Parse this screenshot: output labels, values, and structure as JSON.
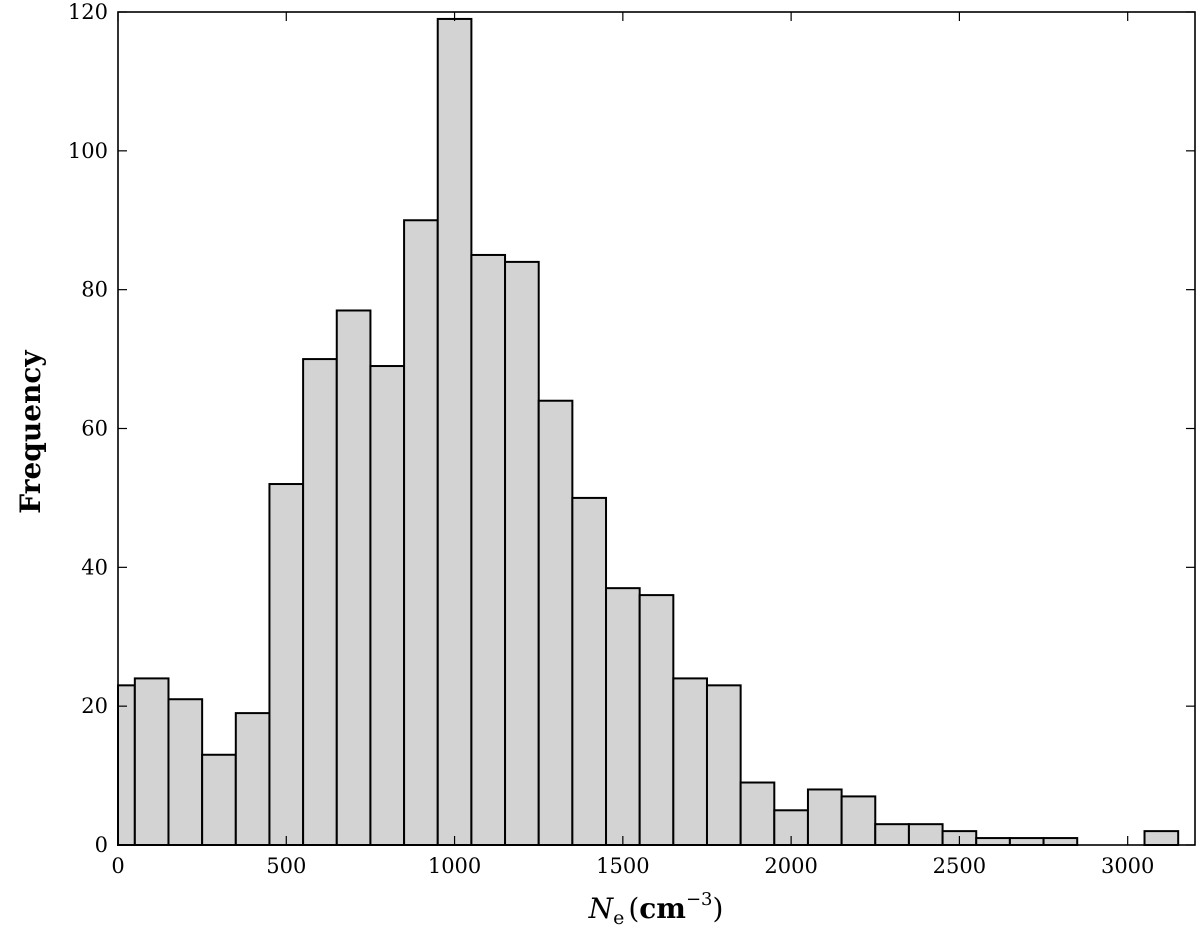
{
  "chart_data": {
    "type": "bar",
    "title": "",
    "xlabel": {
      "symbol": "N",
      "subscript": "e",
      "unit_open": "(",
      "unit": "cm",
      "unit_exponent": "−3",
      "unit_close": ")"
    },
    "ylabel": "Frequency",
    "xlim": [
      0,
      3200
    ],
    "ylim": [
      0,
      120
    ],
    "xticks": [
      "0",
      "500",
      "1000",
      "1500",
      "2000",
      "2500",
      "3000"
    ],
    "yticks": [
      "0",
      "20",
      "40",
      "60",
      "80",
      "100",
      "120"
    ],
    "xtick_values": [
      0,
      500,
      1000,
      1500,
      2000,
      2500,
      3000
    ],
    "ytick_values": [
      0,
      20,
      40,
      60,
      80,
      100,
      120
    ],
    "bin_width": 100,
    "bins_start": [
      -50,
      50,
      150,
      250,
      350,
      450,
      550,
      650,
      750,
      850,
      950,
      1050,
      1150,
      1250,
      1350,
      1450,
      1550,
      1650,
      1750,
      1850,
      1950,
      2050,
      2150,
      2250,
      2350,
      2450,
      2550,
      2650,
      2750,
      2850,
      2950,
      3050
    ],
    "values": [
      23,
      24,
      21,
      13,
      19,
      52,
      70,
      77,
      69,
      90,
      119,
      85,
      84,
      64,
      50,
      37,
      36,
      24,
      23,
      9,
      5,
      8,
      7,
      3,
      3,
      2,
      1,
      1,
      1,
      0,
      0,
      2
    ],
    "grid": false,
    "legend": "none",
    "colors": {
      "bar_fill": "#d3d3d3",
      "bar_edge": "#000000",
      "axes": "#000000"
    }
  }
}
